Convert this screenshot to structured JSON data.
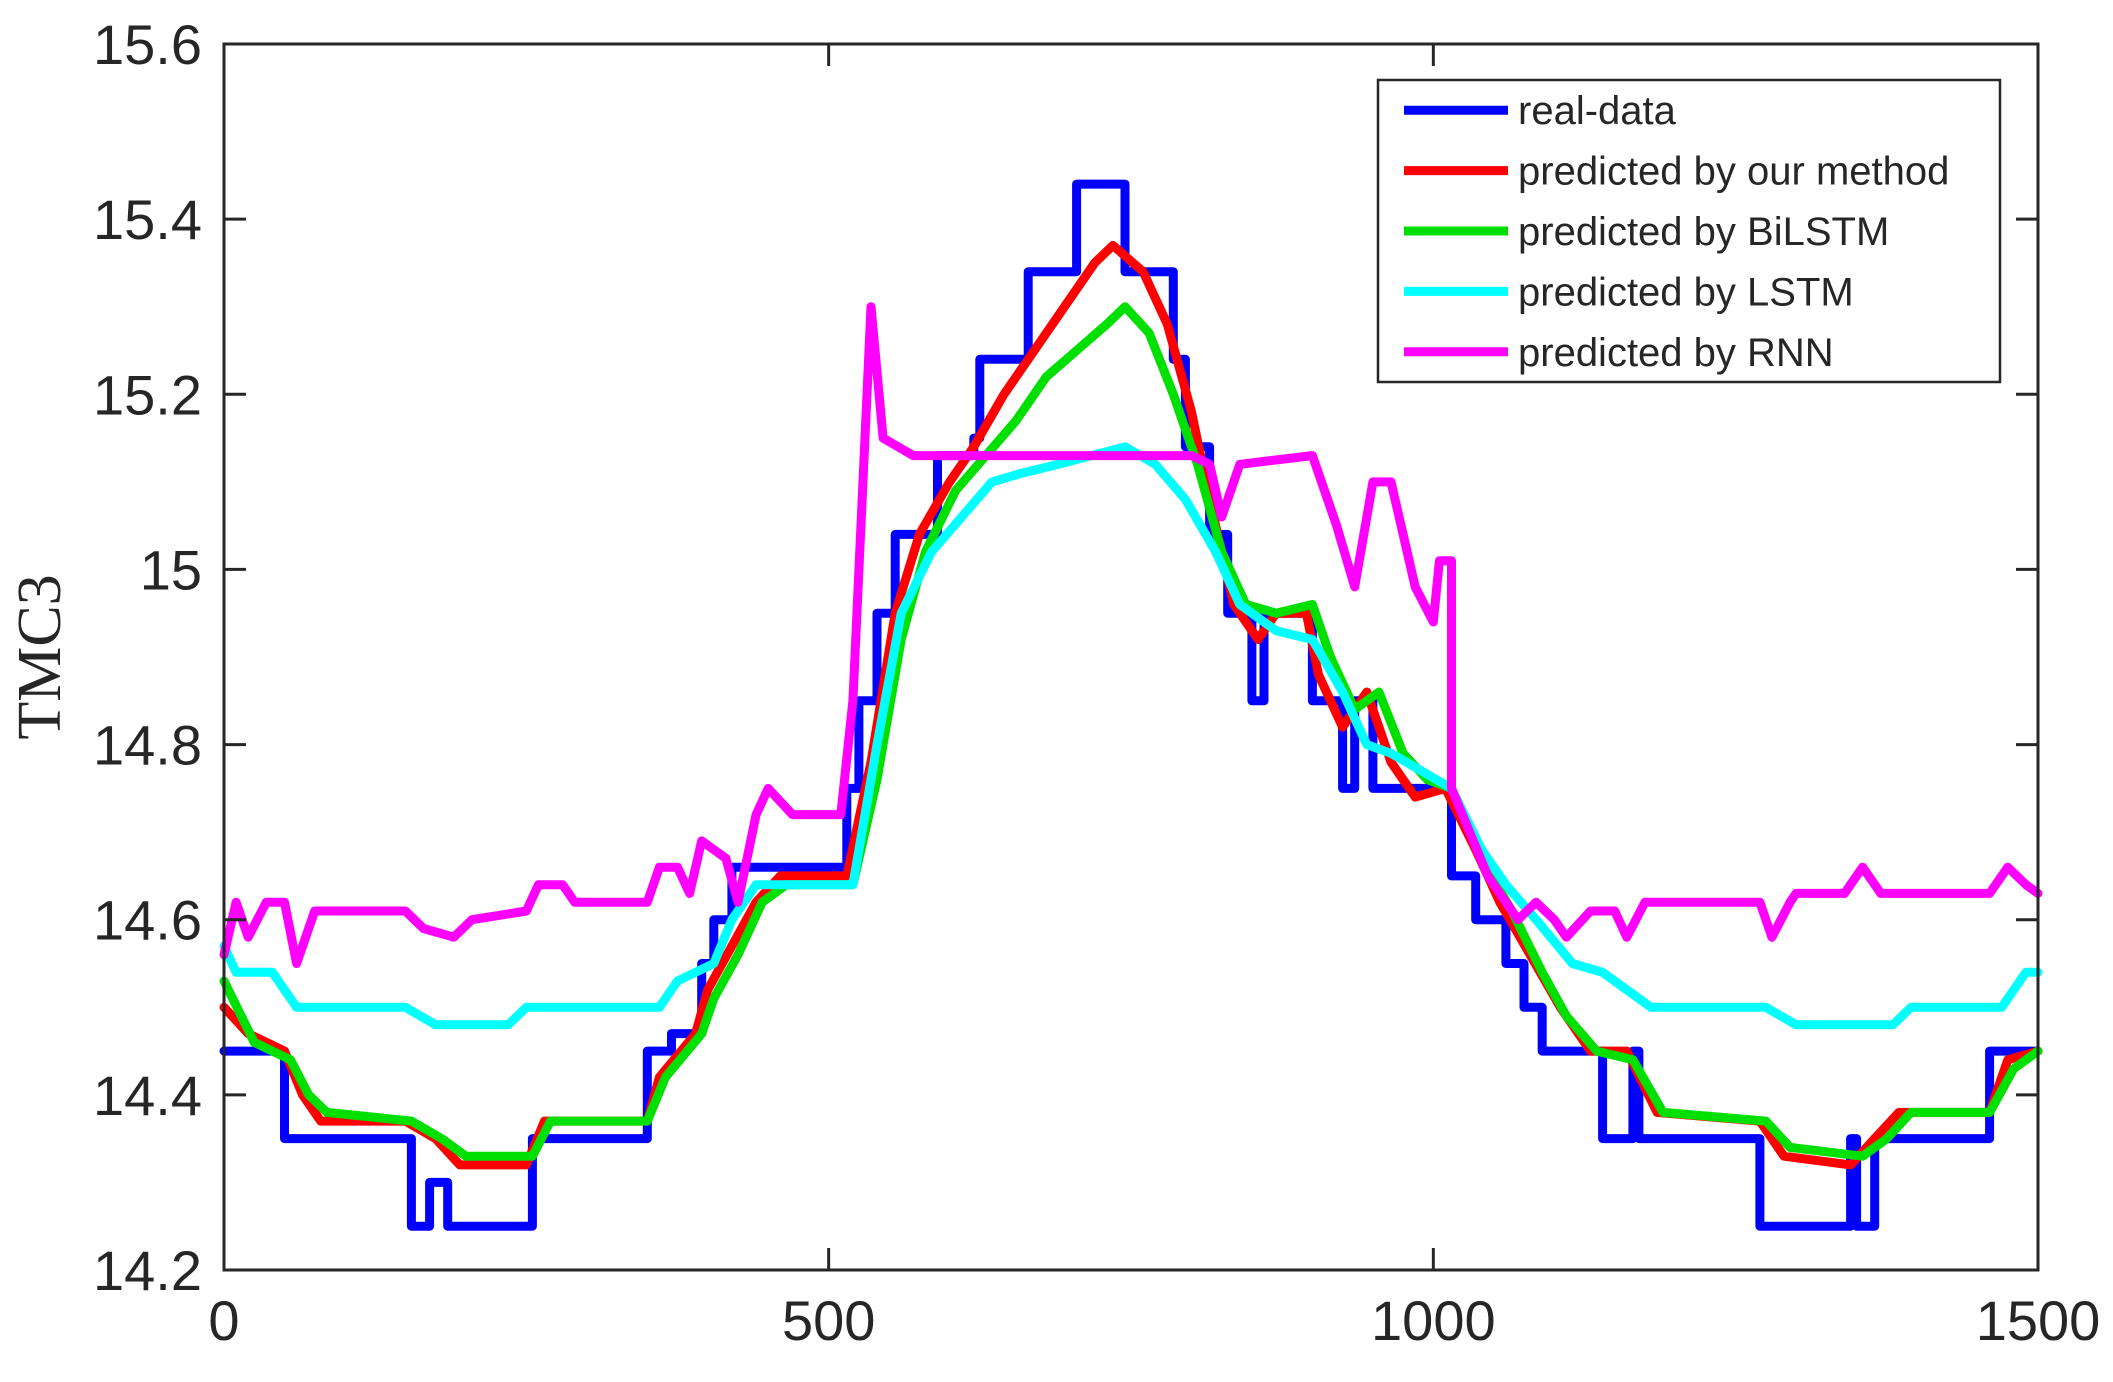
{
  "chart_data": {
    "type": "line",
    "xlabel": "",
    "ylabel": "TMC3",
    "xlim": [
      0,
      1500
    ],
    "ylim": [
      14.2,
      15.6
    ],
    "xticks": [
      "0",
      "500",
      "1000",
      "1500"
    ],
    "yticks": [
      "14.2",
      "14.4",
      "14.6",
      "14.8",
      "15",
      "15.2",
      "15.4",
      "15.6"
    ],
    "grid": false,
    "legend_position": "top-right",
    "series": [
      {
        "name": "real-data",
        "color": "#0000FF",
        "points": [
          [
            0,
            14.45
          ],
          [
            50,
            14.45
          ],
          [
            50,
            14.35
          ],
          [
            155,
            14.35
          ],
          [
            155,
            14.25
          ],
          [
            170,
            14.25
          ],
          [
            170,
            14.3
          ],
          [
            185,
            14.3
          ],
          [
            185,
            14.25
          ],
          [
            255,
            14.25
          ],
          [
            255,
            14.35
          ],
          [
            350,
            14.35
          ],
          [
            350,
            14.45
          ],
          [
            370,
            14.45
          ],
          [
            370,
            14.47
          ],
          [
            395,
            14.47
          ],
          [
            395,
            14.55
          ],
          [
            405,
            14.55
          ],
          [
            405,
            14.6
          ],
          [
            420,
            14.6
          ],
          [
            420,
            14.66
          ],
          [
            515,
            14.66
          ],
          [
            515,
            14.75
          ],
          [
            525,
            14.75
          ],
          [
            525,
            14.85
          ],
          [
            540,
            14.85
          ],
          [
            540,
            14.95
          ],
          [
            555,
            14.95
          ],
          [
            555,
            15.04
          ],
          [
            590,
            15.04
          ],
          [
            590,
            15.13
          ],
          [
            620,
            15.13
          ],
          [
            620,
            15.15
          ],
          [
            625,
            15.15
          ],
          [
            625,
            15.24
          ],
          [
            665,
            15.24
          ],
          [
            665,
            15.34
          ],
          [
            705,
            15.34
          ],
          [
            705,
            15.44
          ],
          [
            745,
            15.44
          ],
          [
            745,
            15.34
          ],
          [
            785,
            15.34
          ],
          [
            785,
            15.24
          ],
          [
            795,
            15.24
          ],
          [
            795,
            15.14
          ],
          [
            815,
            15.14
          ],
          [
            815,
            15.04
          ],
          [
            830,
            15.04
          ],
          [
            830,
            14.95
          ],
          [
            850,
            14.95
          ],
          [
            850,
            14.85
          ],
          [
            860,
            14.85
          ],
          [
            860,
            14.95
          ],
          [
            900,
            14.95
          ],
          [
            900,
            14.85
          ],
          [
            925,
            14.85
          ],
          [
            925,
            14.75
          ],
          [
            935,
            14.75
          ],
          [
            935,
            14.85
          ],
          [
            950,
            14.85
          ],
          [
            950,
            14.75
          ],
          [
            1015,
            14.75
          ],
          [
            1015,
            14.65
          ],
          [
            1035,
            14.65
          ],
          [
            1035,
            14.6
          ],
          [
            1060,
            14.6
          ],
          [
            1060,
            14.55
          ],
          [
            1075,
            14.55
          ],
          [
            1075,
            14.5
          ],
          [
            1090,
            14.5
          ],
          [
            1090,
            14.45
          ],
          [
            1140,
            14.45
          ],
          [
            1140,
            14.35
          ],
          [
            1165,
            14.35
          ],
          [
            1165,
            14.45
          ],
          [
            1170,
            14.45
          ],
          [
            1170,
            14.35
          ],
          [
            1270,
            14.35
          ],
          [
            1270,
            14.25
          ],
          [
            1345,
            14.25
          ],
          [
            1345,
            14.35
          ],
          [
            1350,
            14.35
          ],
          [
            1350,
            14.25
          ],
          [
            1365,
            14.25
          ],
          [
            1365,
            14.35
          ],
          [
            1460,
            14.35
          ],
          [
            1460,
            14.45
          ],
          [
            1500,
            14.45
          ]
        ]
      },
      {
        "name": "predicted by our method",
        "color": "#FF0000",
        "points": [
          [
            0,
            14.5
          ],
          [
            20,
            14.47
          ],
          [
            50,
            14.45
          ],
          [
            65,
            14.4
          ],
          [
            80,
            14.37
          ],
          [
            150,
            14.37
          ],
          [
            175,
            14.35
          ],
          [
            195,
            14.32
          ],
          [
            250,
            14.32
          ],
          [
            265,
            14.37
          ],
          [
            350,
            14.37
          ],
          [
            360,
            14.42
          ],
          [
            390,
            14.47
          ],
          [
            400,
            14.52
          ],
          [
            420,
            14.57
          ],
          [
            440,
            14.62
          ],
          [
            460,
            14.65
          ],
          [
            515,
            14.65
          ],
          [
            535,
            14.78
          ],
          [
            555,
            14.95
          ],
          [
            575,
            15.04
          ],
          [
            600,
            15.1
          ],
          [
            620,
            15.14
          ],
          [
            645,
            15.2
          ],
          [
            670,
            15.25
          ],
          [
            695,
            15.3
          ],
          [
            720,
            15.35
          ],
          [
            735,
            15.37
          ],
          [
            760,
            15.34
          ],
          [
            780,
            15.28
          ],
          [
            800,
            15.18
          ],
          [
            815,
            15.08
          ],
          [
            835,
            14.96
          ],
          [
            855,
            14.92
          ],
          [
            870,
            14.95
          ],
          [
            895,
            14.95
          ],
          [
            905,
            14.88
          ],
          [
            925,
            14.82
          ],
          [
            945,
            14.86
          ],
          [
            965,
            14.78
          ],
          [
            985,
            14.74
          ],
          [
            1010,
            14.75
          ],
          [
            1035,
            14.68
          ],
          [
            1055,
            14.62
          ],
          [
            1080,
            14.56
          ],
          [
            1105,
            14.5
          ],
          [
            1130,
            14.45
          ],
          [
            1160,
            14.45
          ],
          [
            1185,
            14.38
          ],
          [
            1270,
            14.37
          ],
          [
            1290,
            14.33
          ],
          [
            1345,
            14.32
          ],
          [
            1365,
            14.35
          ],
          [
            1385,
            14.38
          ],
          [
            1460,
            14.38
          ],
          [
            1475,
            14.44
          ],
          [
            1500,
            14.45
          ]
        ]
      },
      {
        "name": "predicted by BiLSTM",
        "color": "#00E000",
        "points": [
          [
            0,
            14.53
          ],
          [
            25,
            14.46
          ],
          [
            55,
            14.44
          ],
          [
            70,
            14.4
          ],
          [
            85,
            14.38
          ],
          [
            155,
            14.37
          ],
          [
            180,
            14.35
          ],
          [
            200,
            14.33
          ],
          [
            255,
            14.33
          ],
          [
            270,
            14.37
          ],
          [
            350,
            14.37
          ],
          [
            365,
            14.42
          ],
          [
            395,
            14.47
          ],
          [
            405,
            14.51
          ],
          [
            425,
            14.56
          ],
          [
            445,
            14.62
          ],
          [
            465,
            14.64
          ],
          [
            520,
            14.64
          ],
          [
            540,
            14.76
          ],
          [
            560,
            14.92
          ],
          [
            580,
            15.02
          ],
          [
            605,
            15.09
          ],
          [
            630,
            15.13
          ],
          [
            655,
            15.17
          ],
          [
            680,
            15.22
          ],
          [
            705,
            15.25
          ],
          [
            730,
            15.28
          ],
          [
            745,
            15.3
          ],
          [
            765,
            15.27
          ],
          [
            785,
            15.2
          ],
          [
            805,
            15.12
          ],
          [
            825,
            15.02
          ],
          [
            845,
            14.96
          ],
          [
            870,
            14.95
          ],
          [
            900,
            14.96
          ],
          [
            915,
            14.9
          ],
          [
            935,
            14.84
          ],
          [
            955,
            14.86
          ],
          [
            975,
            14.79
          ],
          [
            995,
            14.76
          ],
          [
            1015,
            14.75
          ],
          [
            1040,
            14.67
          ],
          [
            1065,
            14.61
          ],
          [
            1090,
            14.54
          ],
          [
            1110,
            14.49
          ],
          [
            1135,
            14.45
          ],
          [
            1165,
            14.44
          ],
          [
            1190,
            14.38
          ],
          [
            1275,
            14.37
          ],
          [
            1295,
            14.34
          ],
          [
            1355,
            14.33
          ],
          [
            1375,
            14.35
          ],
          [
            1395,
            14.38
          ],
          [
            1460,
            14.38
          ],
          [
            1480,
            14.43
          ],
          [
            1500,
            14.45
          ]
        ]
      },
      {
        "name": "predicted by LSTM",
        "color": "#00FFFF",
        "points": [
          [
            0,
            14.57
          ],
          [
            10,
            14.54
          ],
          [
            40,
            14.54
          ],
          [
            60,
            14.5
          ],
          [
            150,
            14.5
          ],
          [
            175,
            14.48
          ],
          [
            200,
            14.48
          ],
          [
            235,
            14.48
          ],
          [
            250,
            14.5
          ],
          [
            360,
            14.5
          ],
          [
            375,
            14.53
          ],
          [
            405,
            14.55
          ],
          [
            420,
            14.6
          ],
          [
            440,
            14.64
          ],
          [
            520,
            14.64
          ],
          [
            540,
            14.8
          ],
          [
            560,
            14.95
          ],
          [
            585,
            15.02
          ],
          [
            610,
            15.06
          ],
          [
            635,
            15.1
          ],
          [
            660,
            15.11
          ],
          [
            690,
            15.12
          ],
          [
            745,
            15.14
          ],
          [
            770,
            15.12
          ],
          [
            795,
            15.08
          ],
          [
            820,
            15.02
          ],
          [
            840,
            14.96
          ],
          [
            870,
            14.93
          ],
          [
            900,
            14.92
          ],
          [
            925,
            14.86
          ],
          [
            945,
            14.8
          ],
          [
            965,
            14.79
          ],
          [
            990,
            14.77
          ],
          [
            1015,
            14.75
          ],
          [
            1040,
            14.68
          ],
          [
            1060,
            14.64
          ],
          [
            1085,
            14.6
          ],
          [
            1115,
            14.55
          ],
          [
            1140,
            14.54
          ],
          [
            1160,
            14.52
          ],
          [
            1180,
            14.5
          ],
          [
            1275,
            14.5
          ],
          [
            1300,
            14.48
          ],
          [
            1380,
            14.48
          ],
          [
            1395,
            14.5
          ],
          [
            1470,
            14.5
          ],
          [
            1490,
            14.54
          ],
          [
            1500,
            14.54
          ]
        ]
      },
      {
        "name": "predicted by RNN",
        "color": "#FF00FF",
        "points": [
          [
            0,
            14.56
          ],
          [
            10,
            14.62
          ],
          [
            20,
            14.58
          ],
          [
            35,
            14.62
          ],
          [
            50,
            14.62
          ],
          [
            60,
            14.55
          ],
          [
            75,
            14.61
          ],
          [
            150,
            14.61
          ],
          [
            165,
            14.59
          ],
          [
            190,
            14.58
          ],
          [
            205,
            14.6
          ],
          [
            250,
            14.61
          ],
          [
            260,
            14.64
          ],
          [
            280,
            14.64
          ],
          [
            290,
            14.62
          ],
          [
            350,
            14.62
          ],
          [
            360,
            14.66
          ],
          [
            375,
            14.66
          ],
          [
            385,
            14.63
          ],
          [
            395,
            14.69
          ],
          [
            415,
            14.67
          ],
          [
            425,
            14.62
          ],
          [
            440,
            14.72
          ],
          [
            450,
            14.75
          ],
          [
            470,
            14.72
          ],
          [
            510,
            14.72
          ],
          [
            520,
            14.85
          ],
          [
            535,
            15.3
          ],
          [
            545,
            15.15
          ],
          [
            570,
            15.13
          ],
          [
            800,
            15.13
          ],
          [
            815,
            15.12
          ],
          [
            825,
            15.06
          ],
          [
            840,
            15.12
          ],
          [
            900,
            15.13
          ],
          [
            920,
            15.05
          ],
          [
            935,
            14.98
          ],
          [
            950,
            15.1
          ],
          [
            965,
            15.1
          ],
          [
            975,
            15.04
          ],
          [
            985,
            14.98
          ],
          [
            1000,
            14.94
          ],
          [
            1005,
            15.01
          ],
          [
            1015,
            15.01
          ],
          [
            1015,
            14.75
          ],
          [
            1030,
            14.7
          ],
          [
            1045,
            14.65
          ],
          [
            1060,
            14.62
          ],
          [
            1070,
            14.6
          ],
          [
            1085,
            14.62
          ],
          [
            1100,
            14.6
          ],
          [
            1110,
            14.58
          ],
          [
            1130,
            14.61
          ],
          [
            1150,
            14.61
          ],
          [
            1160,
            14.58
          ],
          [
            1175,
            14.62
          ],
          [
            1270,
            14.62
          ],
          [
            1280,
            14.58
          ],
          [
            1295,
            14.62
          ],
          [
            1300,
            14.63
          ],
          [
            1340,
            14.63
          ],
          [
            1355,
            14.66
          ],
          [
            1370,
            14.63
          ],
          [
            1460,
            14.63
          ],
          [
            1475,
            14.66
          ],
          [
            1490,
            14.64
          ],
          [
            1500,
            14.63
          ]
        ]
      }
    ]
  }
}
